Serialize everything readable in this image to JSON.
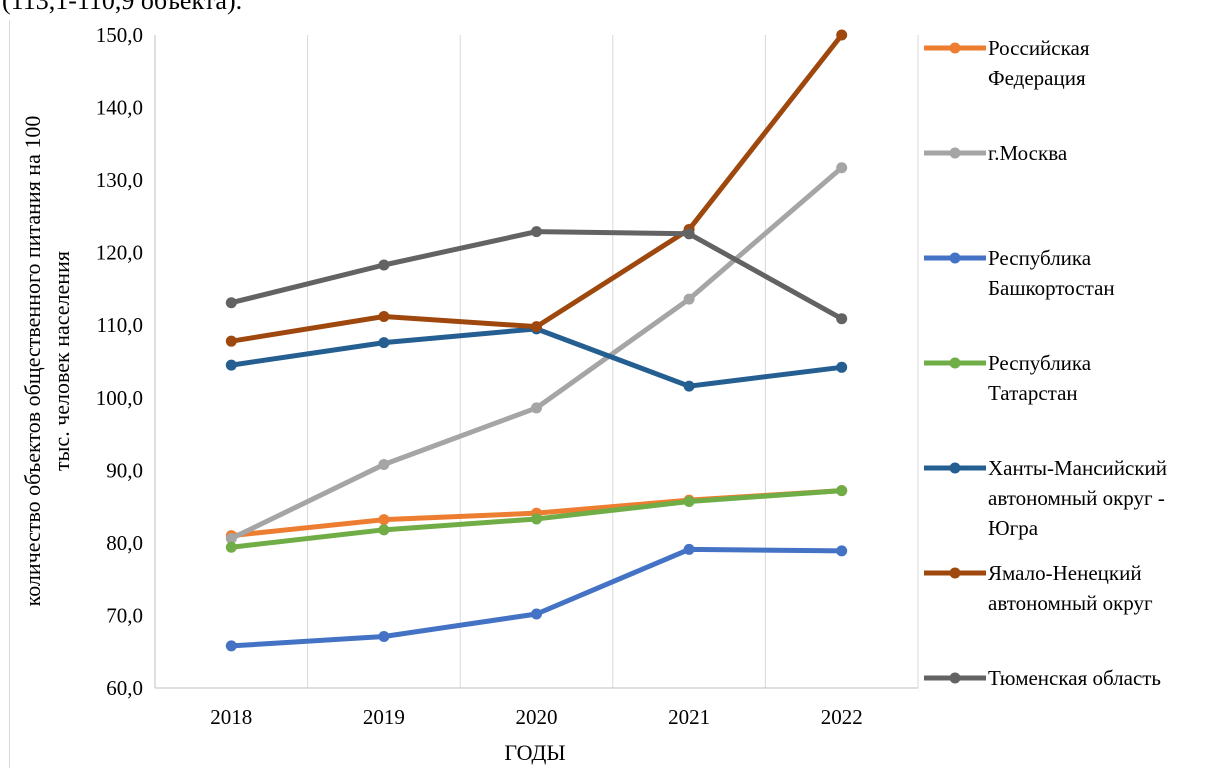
{
  "header_text": "(113,1-110,9 объекта).",
  "chart_data": {
    "type": "line",
    "xlabel": "ГОДЫ",
    "ylabel": "количество объектов общественного питания на 100 тыс. человек населения",
    "ylabel_lines": [
      "количество объектов общественного питания на 100",
      "тыс. человек населения"
    ],
    "x": [
      "2018",
      "2019",
      "2020",
      "2021",
      "2022"
    ],
    "ylim": [
      60,
      150
    ],
    "yticks": [
      "60,0",
      "70,0",
      "80,0",
      "90,0",
      "100,0",
      "110,0",
      "120,0",
      "130,0",
      "140,0",
      "150,0"
    ],
    "grid": "vertical",
    "legend_position": "right",
    "series": [
      {
        "name": "Российская Федерация",
        "legend_lines": [
          "Российская",
          "Федерация"
        ],
        "color": "#ED7D31",
        "values": [
          81.0,
          83.2,
          84.1,
          85.9,
          87.2
        ]
      },
      {
        "name": "г.Москва",
        "legend_lines": [
          "г.Москва"
        ],
        "color": "#A5A5A5",
        "values": [
          80.6,
          90.8,
          98.6,
          113.6,
          131.7
        ]
      },
      {
        "name": "Республика Башкортостан",
        "legend_lines": [
          "Республика",
          "Башкортостан"
        ],
        "color": "#4472C4",
        "values": [
          65.8,
          67.1,
          70.2,
          79.1,
          78.9
        ]
      },
      {
        "name": "Республика Татарстан",
        "legend_lines": [
          "Республика",
          "Татарстан"
        ],
        "color": "#70AD47",
        "values": [
          79.4,
          81.8,
          83.3,
          85.7,
          87.2
        ]
      },
      {
        "name": "Ханты-Мансийский автономный округ - Югра",
        "legend_lines": [
          "Ханты-Мансийский",
          "автономный округ -",
          "Югра"
        ],
        "color": "#255E91",
        "values": [
          104.5,
          107.6,
          109.5,
          101.6,
          104.2
        ]
      },
      {
        "name": "Ямало-Ненецкий автономный округ",
        "legend_lines": [
          "Ямало-Ненецкий",
          "автономный округ"
        ],
        "color": "#9E480E",
        "values": [
          107.8,
          111.2,
          109.8,
          123.2,
          150.0
        ]
      },
      {
        "name": "Тюменская область",
        "legend_lines": [
          "Тюменская область"
        ],
        "color": "#636363",
        "values": [
          113.1,
          118.3,
          122.9,
          122.6,
          110.9
        ]
      }
    ]
  }
}
